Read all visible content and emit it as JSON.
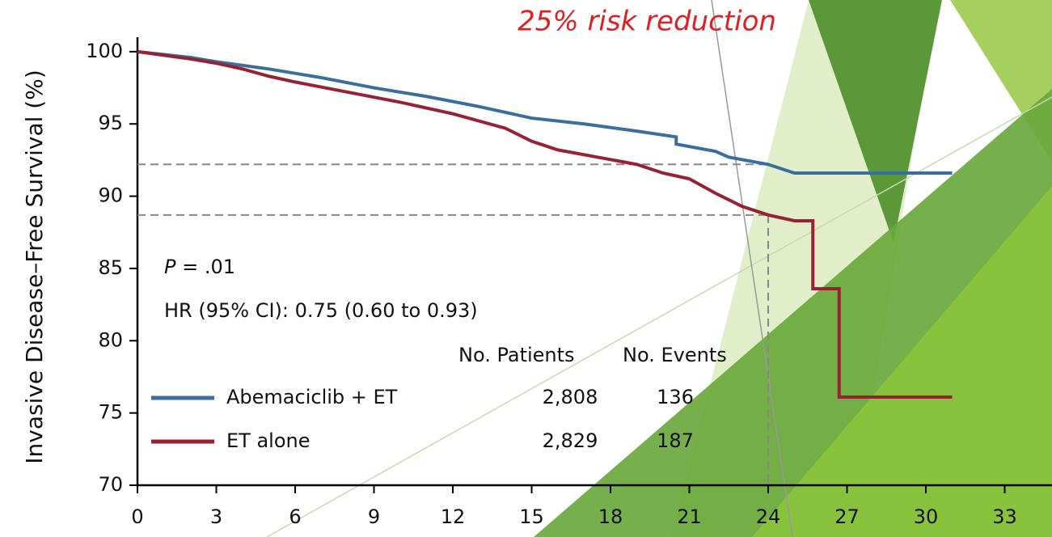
{
  "chart_data": {
    "type": "line",
    "title": "25% risk reduction",
    "y_label": "Invasive Disease–Free Survival (%)",
    "xlim": [
      0,
      34.8
    ],
    "xticks": [
      0,
      3,
      6,
      9,
      12,
      15,
      18,
      21,
      24,
      27,
      30,
      33
    ],
    "ylim": [
      70,
      101
    ],
    "yticks": [
      70,
      75,
      80,
      85,
      90,
      95,
      100
    ],
    "series": [
      {
        "name": "Abemaciclib + ET",
        "color": "#3a6e9f",
        "x": [
          0,
          2,
          3,
          5,
          7,
          9,
          11,
          13,
          15,
          17,
          19,
          20.5,
          20.5,
          22,
          22.5,
          24,
          25,
          31
        ],
        "values": [
          100,
          99.6,
          99.3,
          98.8,
          98.2,
          97.5,
          96.9,
          96.2,
          95.4,
          95,
          94.5,
          94.1,
          93.6,
          93.1,
          92.7,
          92.2,
          91.6,
          91.6
        ]
      },
      {
        "name": "ET alone",
        "color": "#962232",
        "x": [
          0,
          2,
          3,
          4,
          5,
          6,
          8,
          10,
          12,
          14,
          15,
          16,
          17.5,
          19,
          20,
          21,
          22,
          23,
          24,
          25,
          25.7,
          25.7,
          26.7,
          26.7,
          31
        ],
        "values": [
          100,
          99.5,
          99.2,
          98.8,
          98.3,
          97.9,
          97.2,
          96.5,
          95.7,
          94.7,
          93.8,
          93.2,
          92.7,
          92.2,
          91.6,
          91.2,
          90.2,
          89.3,
          88.7,
          88.3,
          88.3,
          83.6,
          83.6,
          76.1,
          76.1
        ]
      }
    ],
    "reference_lines": {
      "y": [
        92.2,
        88.7
      ],
      "x": 24
    },
    "annotations": {
      "p_symbol": "P",
      "p_value": "= .01",
      "hr": "HR (95% CI): 0.75 (0.60 to 0.93)"
    },
    "table": {
      "headers": [
        "No. Patients",
        "No. Events"
      ],
      "rows": [
        [
          "2,808",
          "136"
        ],
        [
          "2,829",
          "187"
        ]
      ]
    }
  }
}
